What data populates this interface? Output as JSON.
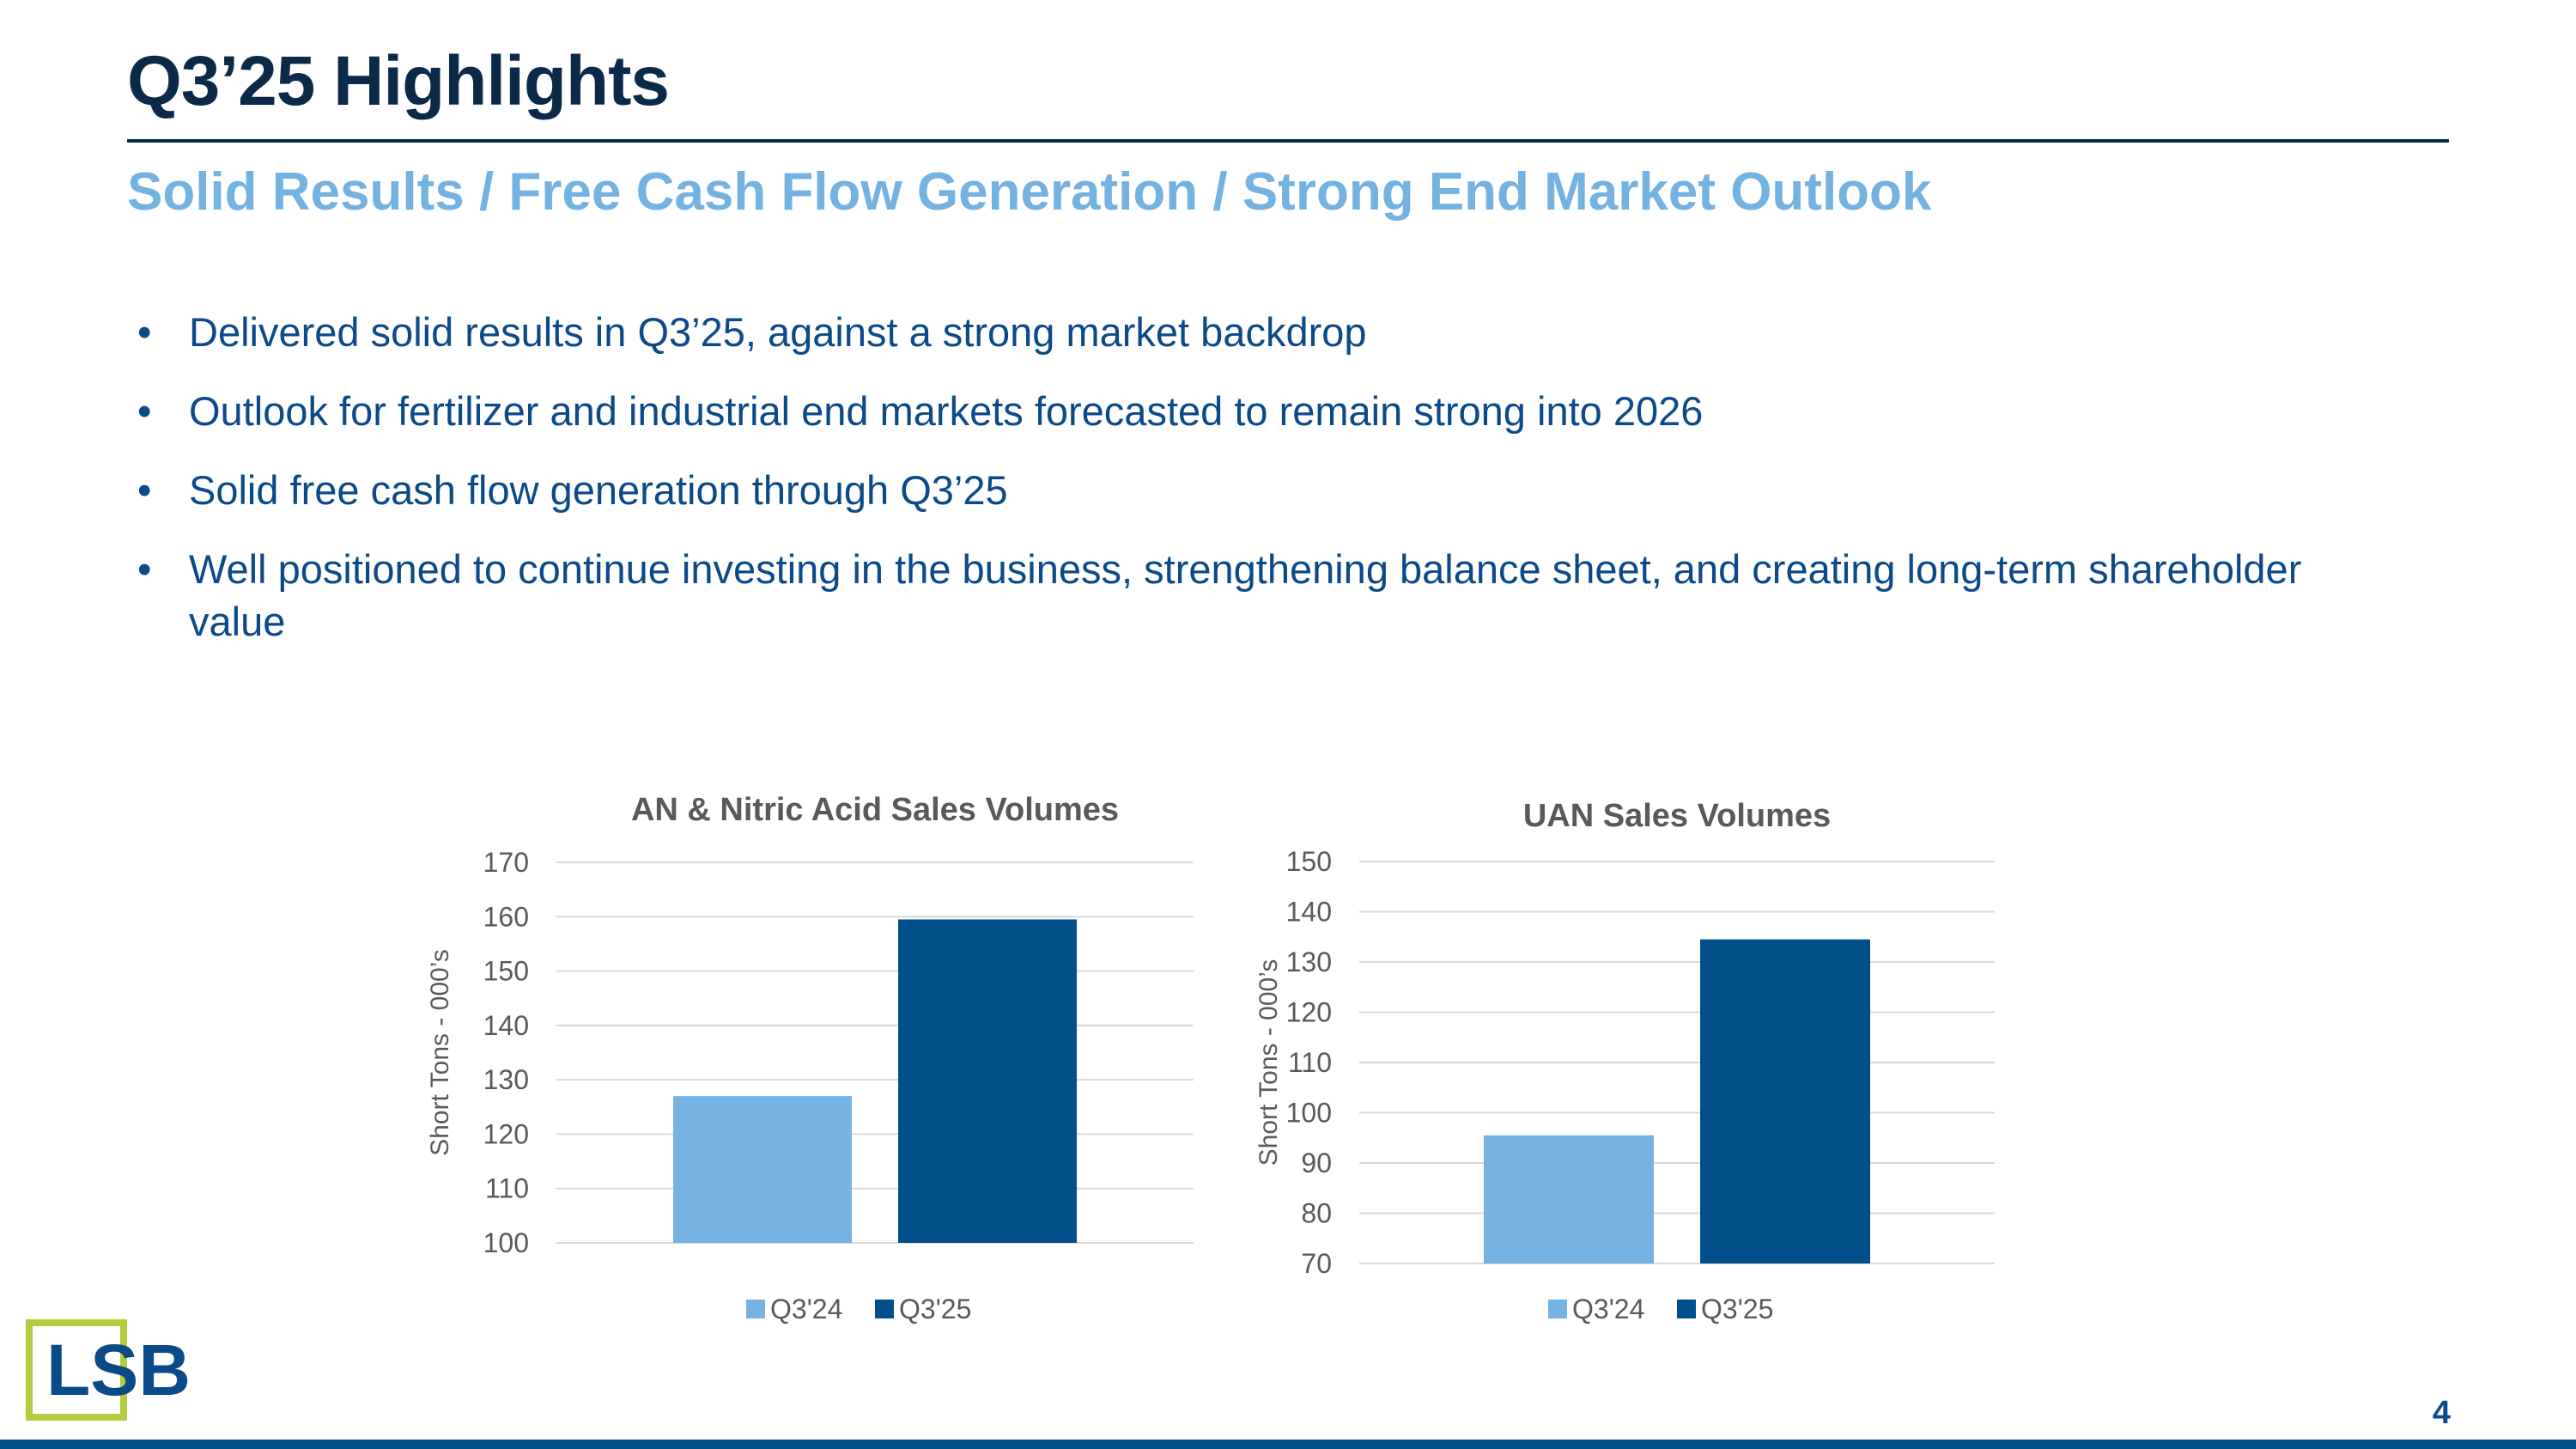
{
  "slide": {
    "title": "Q3’25 Highlights",
    "subtitle": "Solid Results / Free Cash Flow Generation / Strong End Market Outlook",
    "bullet_glyph": "•",
    "bullets": [
      "Delivered solid results in Q3’25, against a strong market backdrop",
      "Outlook for fertilizer and industrial end markets forecasted to remain strong into 2026",
      "Solid free cash flow generation through Q3’25",
      "Well positioned to continue investing in the business, strengthening balance sheet, and creating long-term shareholder value"
    ],
    "page_number": "4",
    "logo_text": "LSB"
  },
  "colors": {
    "q324": "#74b3e3",
    "q325": "#004f8b",
    "title": "#0b2a4a",
    "subtitle": "#74b2e2",
    "body": "#0b4a88",
    "logo_box": "#b5cc3c",
    "logo_text": "#0b4a88"
  },
  "chart_data": [
    {
      "type": "bar",
      "title": "AN & Nitric Acid Sales Volumes",
      "ylabel": "Short Tons - 000’s",
      "xlabel": "",
      "ylim": [
        100,
        170
      ],
      "yticks": [
        100,
        110,
        120,
        130,
        140,
        150,
        160,
        170
      ],
      "categories": [
        ""
      ],
      "series": [
        {
          "name": "Q3'24",
          "values": [
            127
          ]
        },
        {
          "name": "Q3'25",
          "values": [
            159.5
          ]
        }
      ],
      "grid": true,
      "legend": "bottom"
    },
    {
      "type": "bar",
      "title": "UAN Sales Volumes",
      "ylabel": "Short Tons - 000’s",
      "xlabel": "",
      "ylim": [
        70,
        150
      ],
      "yticks": [
        70,
        80,
        90,
        100,
        110,
        120,
        130,
        140,
        150
      ],
      "categories": [
        ""
      ],
      "series": [
        {
          "name": "Q3'24",
          "values": [
            95.5
          ]
        },
        {
          "name": "Q3'25",
          "values": [
            134.5
          ]
        }
      ],
      "grid": true,
      "legend": "bottom"
    }
  ]
}
